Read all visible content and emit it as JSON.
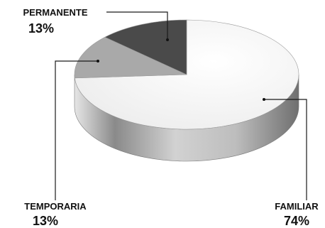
{
  "chart_data": {
    "type": "pie",
    "title": "",
    "style": "3d",
    "legend": "none",
    "slices": [
      {
        "label": "FAMILIAR",
        "value": 74,
        "value_label": "74%",
        "color": "#f4f4f4"
      },
      {
        "label": "TEMPORARIA",
        "value": 13,
        "value_label": "13%",
        "color": "#a9a9a9"
      },
      {
        "label": "PERMANENTE",
        "value": 13,
        "value_label": "13%",
        "color": "#4a4a4a"
      }
    ]
  }
}
